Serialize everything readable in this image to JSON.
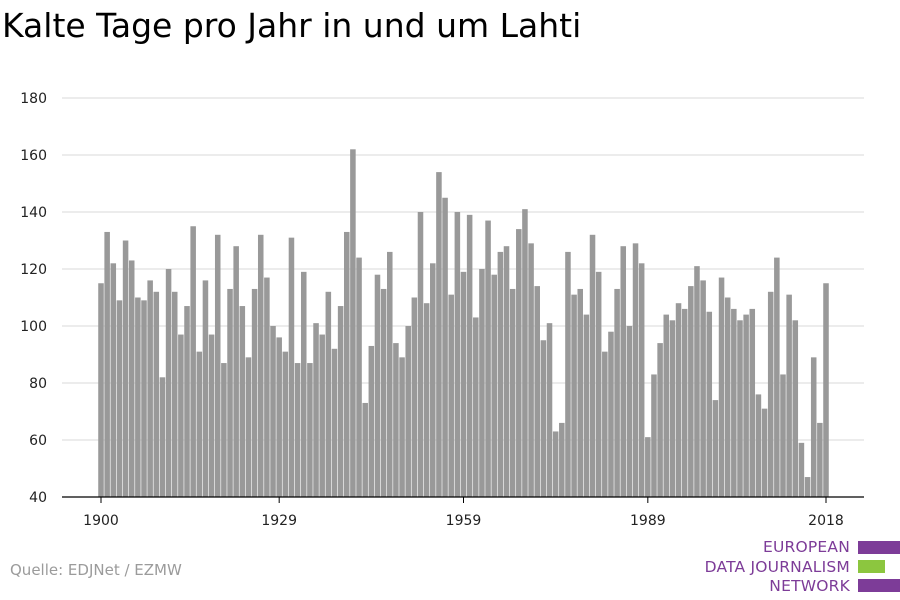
{
  "title": "Kalte Tage pro Jahr in und um Lahti",
  "source": "Quelle: EDJNet / EZMW",
  "logo": {
    "lines": [
      "EUROPEAN",
      "DATA JOURNALISM",
      "NETWORK"
    ],
    "colors": {
      "text": "#7d3c98",
      "bar_purple": "#7d3c98",
      "bar_green": "#8cc63f"
    }
  },
  "colors": {
    "bar": "#999999",
    "grid": "#d9d9d9",
    "axis": "#000000"
  },
  "chart_data": {
    "type": "bar",
    "title": "Kalte Tage pro Jahr in und um Lahti",
    "xlabel": "",
    "ylabel": "",
    "ylim": [
      40,
      180
    ],
    "yticks": [
      40,
      60,
      80,
      100,
      120,
      140,
      160,
      180
    ],
    "xticks": [
      1900,
      1929,
      1959,
      1989,
      2018
    ],
    "grid": true,
    "legend": "none",
    "categories": [
      1900,
      1901,
      1902,
      1903,
      1904,
      1905,
      1906,
      1907,
      1908,
      1909,
      1910,
      1911,
      1912,
      1913,
      1914,
      1915,
      1916,
      1917,
      1918,
      1919,
      1920,
      1921,
      1922,
      1923,
      1924,
      1925,
      1926,
      1927,
      1928,
      1929,
      1930,
      1931,
      1932,
      1933,
      1934,
      1935,
      1936,
      1937,
      1938,
      1939,
      1940,
      1941,
      1942,
      1943,
      1944,
      1945,
      1946,
      1947,
      1948,
      1949,
      1950,
      1951,
      1952,
      1953,
      1954,
      1955,
      1956,
      1957,
      1958,
      1959,
      1960,
      1961,
      1962,
      1963,
      1964,
      1965,
      1966,
      1967,
      1968,
      1969,
      1970,
      1971,
      1972,
      1973,
      1974,
      1975,
      1976,
      1977,
      1978,
      1979,
      1980,
      1981,
      1982,
      1983,
      1984,
      1985,
      1986,
      1987,
      1988,
      1989,
      1990,
      1991,
      1992,
      1993,
      1994,
      1995,
      1996,
      1997,
      1998,
      1999,
      2000,
      2001,
      2002,
      2003,
      2004,
      2005,
      2006,
      2007,
      2008,
      2009,
      2010,
      2011,
      2012,
      2013,
      2014,
      2015,
      2016,
      2017,
      2018
    ],
    "values": [
      115,
      133,
      122,
      109,
      130,
      123,
      110,
      109,
      116,
      112,
      82,
      120,
      112,
      97,
      107,
      135,
      91,
      116,
      97,
      132,
      87,
      113,
      128,
      107,
      89,
      113,
      132,
      117,
      100,
      96,
      91,
      131,
      87,
      119,
      87,
      101,
      97,
      112,
      92,
      107,
      133,
      162,
      124,
      73,
      93,
      118,
      113,
      126,
      94,
      89,
      100,
      110,
      140,
      108,
      122,
      154,
      145,
      111,
      140,
      119,
      139,
      103,
      120,
      137,
      118,
      126,
      128,
      113,
      134,
      141,
      129,
      114,
      95,
      101,
      63,
      66,
      126,
      111,
      113,
      104,
      132,
      119,
      91,
      98,
      113,
      128,
      100,
      129,
      122,
      61,
      83,
      94,
      104,
      102,
      108,
      106,
      114,
      121,
      116,
      105,
      74,
      117,
      110,
      106,
      102,
      104,
      106,
      76,
      71,
      112,
      124,
      83,
      111,
      102,
      59,
      47,
      89,
      66,
      115
    ]
  }
}
